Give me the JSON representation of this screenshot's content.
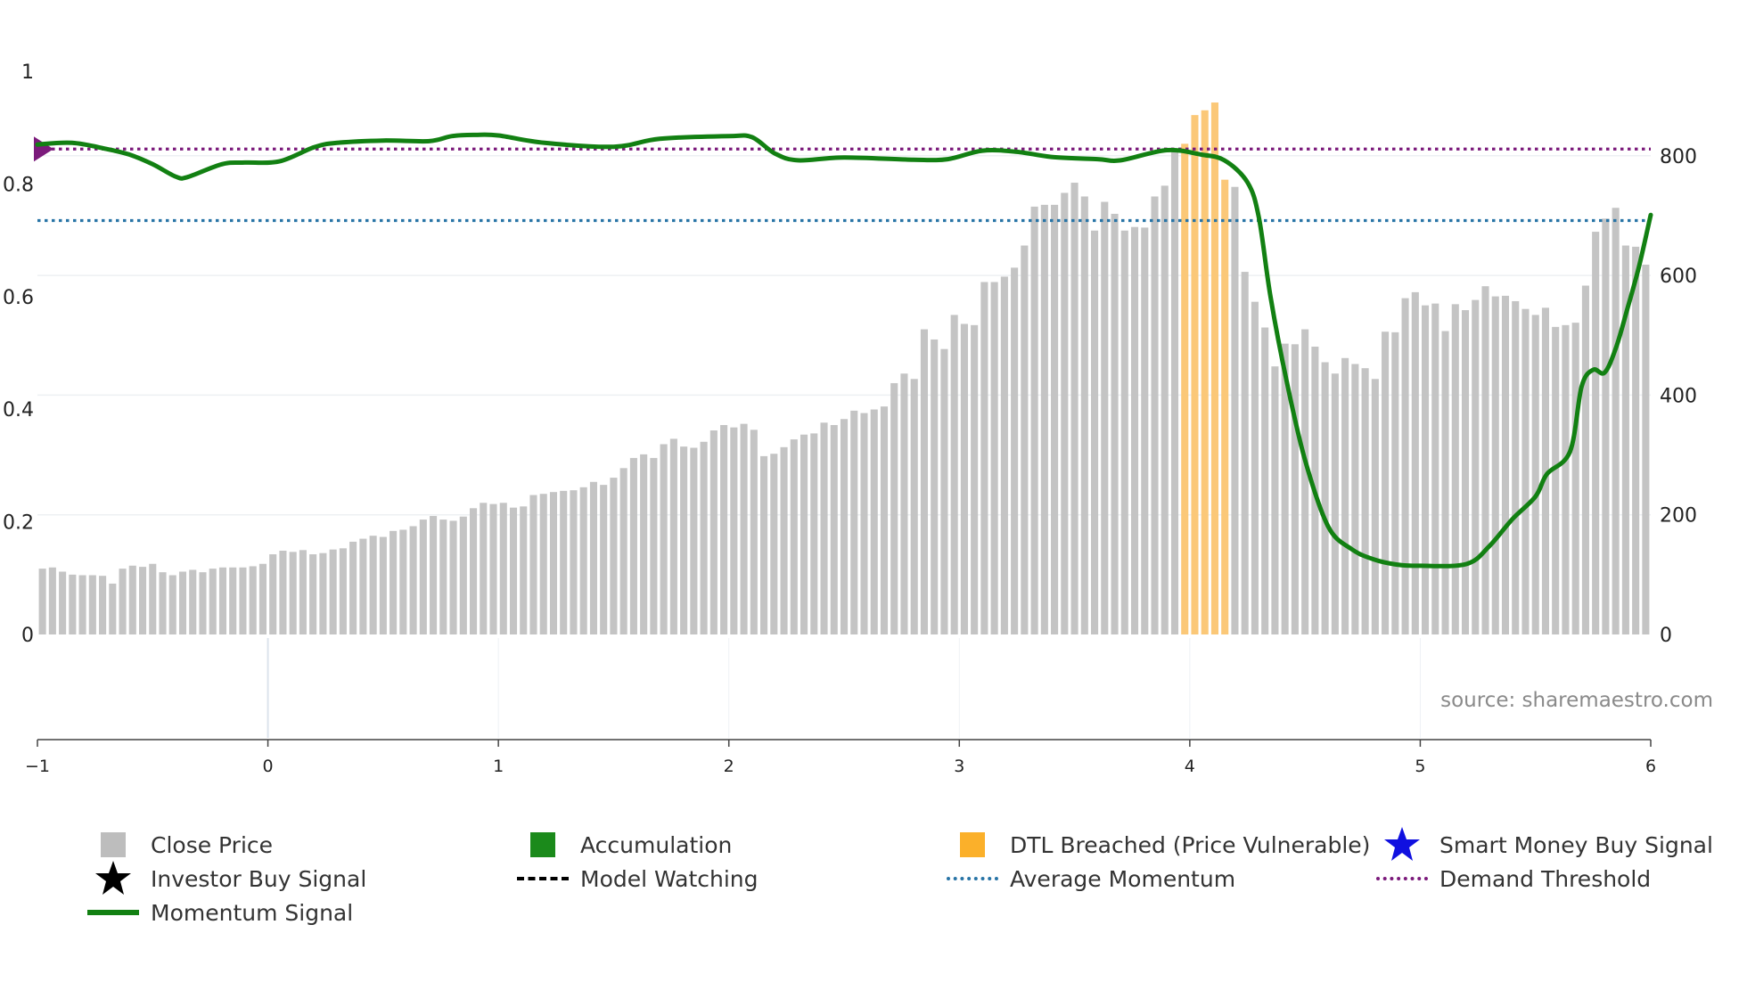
{
  "chart_data": {
    "type": "bar+line",
    "title": "",
    "watermark": "source: sharemaestro.com",
    "left_axis": {
      "range": [
        0,
        1
      ],
      "ticks": [
        "0",
        "0.2",
        "0.4",
        "0.6",
        "0.8",
        "1"
      ],
      "tick_values": [
        0,
        0.2,
        0.4,
        0.6,
        0.8,
        1
      ]
    },
    "right_axis": {
      "range": [
        0,
        940
      ],
      "ticks": [
        "0",
        "200",
        "400",
        "600",
        "800"
      ],
      "tick_values": [
        0,
        200,
        400,
        600,
        800
      ]
    },
    "x_axis": {
      "range": [
        -1,
        6
      ],
      "ticks": [
        "−1",
        "0",
        "1",
        "2",
        "3",
        "4",
        "5",
        "6"
      ],
      "tick_values": [
        -1,
        0,
        1,
        2,
        3,
        4,
        5,
        6
      ]
    },
    "colors": {
      "close_price": "#c4c4c4",
      "dtl_breached": "#fbc878",
      "momentum": "#128012",
      "average_momentum": "#2874a6",
      "demand_threshold": "#7b1a7b",
      "accumulation": "#1b8a1b",
      "smart_money": "#1010e0"
    },
    "average_momentum": 0.735,
    "demand_threshold": 0.862,
    "close_price": [
      110,
      112,
      105,
      100,
      99,
      99,
      98,
      85,
      110,
      115,
      113,
      118,
      104,
      99,
      105,
      108,
      104,
      110,
      112,
      112,
      112,
      114,
      118,
      134,
      140,
      138,
      141,
      134,
      136,
      142,
      144,
      155,
      160,
      165,
      163,
      173,
      175,
      181,
      192,
      198,
      192,
      190,
      197,
      211,
      220,
      218,
      220,
      212,
      214,
      233,
      235,
      238,
      240,
      241,
      246,
      255,
      250,
      262,
      278,
      295,
      301,
      295,
      318,
      327,
      314,
      312,
      322,
      341,
      350,
      346,
      352,
      342,
      298,
      302,
      313,
      326,
      334,
      336,
      354,
      350,
      360,
      374,
      370,
      376,
      381,
      420,
      436,
      427,
      510,
      493,
      477,
      534,
      519,
      517,
      589,
      589,
      598,
      613,
      650,
      715,
      718,
      718,
      738,
      755,
      732,
      675,
      723,
      703,
      675,
      681,
      680,
      732,
      750,
      808,
      820,
      868,
      876,
      889,
      760,
      748,
      606,
      556,
      513,
      448,
      486,
      485,
      510,
      481,
      455,
      436,
      462,
      452,
      445,
      427,
      506,
      505,
      562,
      572,
      550,
      553,
      507,
      552,
      542,
      559,
      582,
      565,
      566,
      557,
      544,
      534,
      546,
      514,
      517,
      521,
      583,
      673,
      695,
      713,
      650,
      648,
      618
    ],
    "dtl_breached_index_range": [
      114,
      118
    ],
    "momentum_samples": [
      [
        -1,
        0.87
      ],
      [
        -0.85,
        0.873
      ],
      [
        -0.7,
        0.862
      ],
      [
        -0.6,
        0.852
      ],
      [
        -0.5,
        0.835
      ],
      [
        -0.4,
        0.813
      ],
      [
        -0.35,
        0.812
      ],
      [
        -0.2,
        0.835
      ],
      [
        -0.1,
        0.838
      ],
      [
        0.05,
        0.84
      ],
      [
        0.2,
        0.865
      ],
      [
        0.3,
        0.873
      ],
      [
        0.5,
        0.877
      ],
      [
        0.7,
        0.876
      ],
      [
        0.8,
        0.885
      ],
      [
        0.9,
        0.887
      ],
      [
        1.0,
        0.886
      ],
      [
        1.2,
        0.873
      ],
      [
        1.5,
        0.866
      ],
      [
        1.7,
        0.88
      ],
      [
        2.0,
        0.885
      ],
      [
        2.1,
        0.883
      ],
      [
        2.2,
        0.854
      ],
      [
        2.3,
        0.842
      ],
      [
        2.5,
        0.847
      ],
      [
        2.8,
        0.843
      ],
      [
        2.95,
        0.844
      ],
      [
        3.1,
        0.859
      ],
      [
        3.25,
        0.857
      ],
      [
        3.4,
        0.848
      ],
      [
        3.6,
        0.844
      ],
      [
        3.7,
        0.842
      ],
      [
        3.9,
        0.86
      ],
      [
        4.05,
        0.852
      ],
      [
        4.15,
        0.842
      ],
      [
        4.25,
        0.803
      ],
      [
        4.3,
        0.74
      ],
      [
        4.35,
        0.6
      ],
      [
        4.42,
        0.45
      ],
      [
        4.5,
        0.31
      ],
      [
        4.6,
        0.192
      ],
      [
        4.7,
        0.152
      ],
      [
        4.8,
        0.133
      ],
      [
        4.9,
        0.124
      ],
      [
        5.0,
        0.122
      ],
      [
        5.2,
        0.125
      ],
      [
        5.3,
        0.157
      ],
      [
        5.4,
        0.205
      ],
      [
        5.5,
        0.245
      ],
      [
        5.55,
        0.285
      ],
      [
        5.65,
        0.325
      ],
      [
        5.7,
        0.44
      ],
      [
        5.75,
        0.47
      ],
      [
        5.8,
        0.465
      ],
      [
        5.85,
        0.51
      ],
      [
        5.9,
        0.58
      ],
      [
        5.95,
        0.655
      ],
      [
        6.0,
        0.745
      ]
    ],
    "legend": [
      {
        "label": "Close Price",
        "symbol": "square",
        "color": "#bdbdbd"
      },
      {
        "label": "Accumulation",
        "symbol": "square",
        "color": "#1b8a1b"
      },
      {
        "label": "DTL Breached (Price Vulnerable)",
        "symbol": "square",
        "color": "#fbb02a"
      },
      {
        "label": "Smart Money Buy Signal",
        "symbol": "star",
        "color": "#1010e0"
      },
      {
        "label": "Investor Buy Signal",
        "symbol": "star",
        "color": "#000000"
      },
      {
        "label": "Model Watching",
        "symbol": "dashed",
        "color": "#000000"
      },
      {
        "label": "Average Momentum",
        "symbol": "dotted",
        "color": "#2874a6"
      },
      {
        "label": "Demand Threshold",
        "symbol": "dotted",
        "color": "#7b1a7b"
      },
      {
        "label": "Momentum Signal",
        "symbol": "line",
        "color": "#128012"
      }
    ]
  }
}
